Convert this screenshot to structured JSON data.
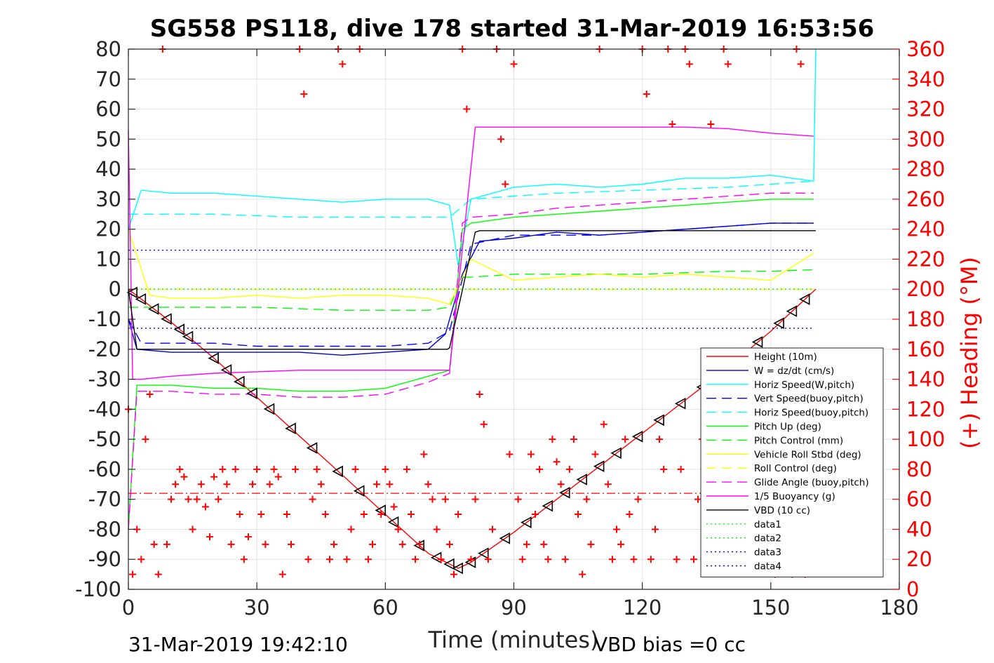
{
  "chart_data": {
    "type": "line",
    "title": "SG558 PS118, dive 178 started 31-Mar-2019 16:53:56",
    "xlabel": "Time (minutes)",
    "ylabel": "",
    "ylabel_right": "(+) Heading (°M)",
    "xlim": [
      0,
      180
    ],
    "ylim": [
      -100,
      80
    ],
    "ylim_right": [
      0,
      360
    ],
    "x_ticks": [
      "0",
      "30",
      "60",
      "90",
      "120",
      "150",
      "180"
    ],
    "y_ticks": [
      "80",
      "70",
      "60",
      "50",
      "40",
      "30",
      "20",
      "10",
      "0",
      "-10",
      "-20",
      "-30",
      "-40",
      "-50",
      "-60",
      "-70",
      "-80",
      "-90",
      "-100"
    ],
    "y_right_ticks": [
      "360",
      "340",
      "320",
      "300",
      "280",
      "260",
      "240",
      "220",
      "200",
      "180",
      "160",
      "140",
      "120",
      "100",
      "80",
      "60",
      "40",
      "20",
      "0"
    ],
    "grid": true,
    "legend_position": "bottom-right",
    "footer_left": "31-Mar-2019 19:42:10",
    "footer_right": "VBD bias =0 cc",
    "series": [
      {
        "name": "Height (10m)",
        "color": "#ff0000",
        "style": "solid",
        "x": [
          0,
          10,
          20,
          30,
          40,
          50,
          60,
          70,
          77,
          80,
          90,
          100,
          110,
          120,
          130,
          140,
          150,
          160.5
        ],
        "values": [
          0,
          -11,
          -23,
          -36,
          -49,
          -62,
          -75,
          -88,
          -93,
          -91,
          -81,
          -70,
          -59,
          -48,
          -37,
          -26,
          -14,
          0
        ]
      },
      {
        "name": "W = dz/dt (cm/s)",
        "color": "#0000cc",
        "style": "solid",
        "x": [
          0,
          2,
          10,
          20,
          30,
          40,
          50,
          60,
          70,
          74,
          78,
          82,
          90,
          100,
          110,
          120,
          130,
          140,
          150,
          160
        ],
        "values": [
          -10,
          -20,
          -21,
          -21,
          -21,
          -21,
          -22,
          -21,
          -20,
          -15,
          5,
          16,
          17,
          19,
          18,
          19,
          20,
          21,
          22,
          22
        ]
      },
      {
        "name": "Horiz Speed(W,pitch)",
        "color": "#00ffff",
        "style": "solid",
        "x": [
          0,
          3,
          10,
          20,
          30,
          40,
          50,
          60,
          70,
          75,
          77,
          80,
          90,
          100,
          110,
          120,
          130,
          140,
          150,
          160,
          160.5
        ],
        "values": [
          20,
          33,
          32,
          32,
          31,
          30,
          29,
          30,
          30,
          28,
          8,
          30,
          34,
          35,
          34,
          35,
          37,
          37,
          38,
          36,
          80
        ]
      },
      {
        "name": "Vert Speed(buoy,pitch)",
        "color": "#0000ff",
        "style": "dashed",
        "x": [
          0,
          3,
          10,
          20,
          30,
          40,
          50,
          60,
          70,
          75,
          80,
          90,
          100,
          110,
          120,
          130,
          140,
          150,
          160
        ],
        "values": [
          -10,
          -18,
          -18,
          -18,
          -19,
          -19,
          -19,
          -19,
          -18,
          -14,
          15,
          18,
          18,
          18,
          19,
          20,
          21,
          22,
          22
        ]
      },
      {
        "name": "Horiz Speed(buoy,pitch)",
        "color": "#00ffff",
        "style": "dashed",
        "x": [
          0,
          5,
          20,
          40,
          60,
          75,
          80,
          100,
          120,
          140,
          160
        ],
        "values": [
          25,
          25,
          25,
          24,
          24,
          24,
          30,
          32,
          33,
          34,
          36
        ]
      },
      {
        "name": "Pitch Up (deg)",
        "color": "#00ff00",
        "style": "solid",
        "x": [
          0,
          2,
          10,
          20,
          30,
          40,
          50,
          60,
          70,
          75,
          78,
          80,
          90,
          100,
          110,
          120,
          130,
          140,
          150,
          160
        ],
        "values": [
          -80,
          -32,
          -32,
          -33,
          -33,
          -34,
          -34,
          -33,
          -29,
          -27,
          20,
          22,
          24,
          25,
          26,
          27,
          28,
          29,
          30,
          30
        ]
      },
      {
        "name": "Pitch Control (mm)",
        "color": "#00ff00",
        "style": "dashed",
        "x": [
          0,
          10,
          20,
          30,
          40,
          50,
          60,
          70,
          75,
          78,
          80,
          90,
          100,
          110,
          120,
          130,
          140,
          150,
          160
        ],
        "values": [
          -6,
          -6,
          -6,
          -6,
          -6.5,
          -7,
          -7,
          -7,
          -6,
          4,
          4,
          5,
          5,
          5,
          5,
          5.5,
          6,
          6,
          6.5
        ]
      },
      {
        "name": "Vehicle Roll Stbd (deg)",
        "color": "#ffff00",
        "style": "solid",
        "x": [
          0,
          5,
          10,
          20,
          30,
          40,
          50,
          60,
          70,
          75,
          80,
          90,
          100,
          110,
          120,
          130,
          140,
          150,
          160
        ],
        "values": [
          20,
          -2,
          -3,
          -3,
          -2,
          -3,
          -2,
          -2,
          -3,
          -5,
          10,
          3,
          4,
          5,
          4,
          5,
          4,
          3,
          12
        ]
      },
      {
        "name": "Roll Control (deg)",
        "color": "#ffff00",
        "style": "dashed",
        "x": [
          0,
          160
        ],
        "values": [
          0,
          0
        ]
      },
      {
        "name": "Glide Angle (buoy,pitch)",
        "color": "#ff00ff",
        "style": "dashed",
        "x": [
          0,
          2,
          10,
          20,
          30,
          40,
          50,
          60,
          70,
          75,
          78,
          80,
          90,
          100,
          110,
          120,
          130,
          140,
          150,
          160
        ],
        "values": [
          -80,
          -34,
          -34,
          -35,
          -35,
          -36,
          -36,
          -35,
          -31,
          -28,
          22,
          24,
          25,
          27,
          28,
          29,
          30,
          31,
          32,
          32
        ]
      },
      {
        "name": "1/5 Buoyancy (g)",
        "color": "#ff00ff",
        "style": "solid",
        "x": [
          0,
          1,
          3,
          10,
          20,
          30,
          40,
          50,
          60,
          70,
          75,
          81,
          90,
          100,
          110,
          120,
          130,
          140,
          150,
          160
        ],
        "values": [
          53,
          -30,
          -30,
          -29,
          -28,
          -27.5,
          -27,
          -27,
          -27,
          -27,
          -27,
          54,
          54,
          54,
          54,
          54,
          54,
          53.5,
          52,
          51
        ]
      },
      {
        "name": "VBD (10 cc)",
        "color": "#000000",
        "style": "solid",
        "x": [
          0,
          2,
          10,
          30,
          50,
          70,
          74.5,
          75,
          81,
          82,
          100,
          120,
          140,
          160.5
        ],
        "values": [
          0,
          -20,
          -20,
          -20,
          -20,
          -20,
          -20,
          -19.5,
          19,
          19.5,
          19.5,
          19.5,
          19.5,
          19.5
        ]
      },
      {
        "name": "data1",
        "color": "#00ff00",
        "style": "dotted",
        "x": [
          0,
          160
        ],
        "values": [
          0,
          0
        ]
      },
      {
        "name": "data2",
        "color": "#00ff00",
        "style": "dotted",
        "x": [
          0,
          160
        ],
        "values": [
          0,
          0
        ]
      },
      {
        "name": "data3",
        "color": "#0000ff",
        "style": "dotted",
        "x": [
          0,
          160
        ],
        "values": [
          13,
          13
        ]
      },
      {
        "name": "data4",
        "color": "#0000ff",
        "style": "dotted",
        "x": [
          0,
          160
        ],
        "values": [
          -13,
          -13
        ]
      }
    ],
    "extra_lines": [
      {
        "color": "#ff0000",
        "style": "dashdot",
        "x": [
          0,
          160
        ],
        "values": [
          -68,
          -68
        ]
      }
    ],
    "heading": {
      "color": "#ff0000",
      "marker": "+",
      "axis": "right",
      "x": [
        0,
        1,
        2,
        3,
        4,
        5,
        6,
        7,
        8,
        9,
        10,
        11,
        12,
        13,
        14,
        15,
        16,
        17,
        18,
        19,
        20,
        21,
        22,
        23,
        24,
        25,
        26,
        27,
        28,
        29,
        30,
        31,
        32,
        33,
        34,
        35,
        36,
        37,
        38,
        39,
        40,
        41,
        42,
        43,
        44,
        45,
        46,
        47,
        48,
        49,
        50,
        51,
        52,
        53,
        54,
        55,
        56,
        57,
        58,
        59,
        60,
        61,
        62,
        63,
        64,
        65,
        66,
        67,
        68,
        69,
        70,
        71,
        72,
        73,
        74,
        75,
        76,
        77,
        78,
        79,
        80,
        81,
        82,
        83,
        84,
        85,
        86,
        87,
        88,
        89,
        90,
        91,
        92,
        93,
        94,
        95,
        96,
        97,
        98,
        99,
        100,
        101,
        102,
        103,
        104,
        105,
        106,
        107,
        108,
        109,
        110,
        111,
        112,
        113,
        114,
        115,
        116,
        117,
        118,
        119,
        120,
        121,
        122,
        123,
        124,
        125,
        126,
        127,
        128,
        129,
        130,
        131,
        132,
        133,
        134,
        135,
        136,
        137,
        138,
        139,
        140,
        141,
        142,
        143,
        144,
        145,
        146,
        147,
        148,
        149,
        150,
        151,
        152,
        153,
        154,
        155,
        156,
        157,
        158,
        159,
        160
      ],
      "values": [
        120,
        10,
        40,
        20,
        100,
        130,
        30,
        10,
        360,
        30,
        60,
        70,
        80,
        75,
        60,
        40,
        60,
        70,
        55,
        35,
        75,
        60,
        80,
        70,
        30,
        80,
        50,
        20,
        35,
        70,
        80,
        50,
        30,
        70,
        80,
        75,
        10,
        50,
        30,
        80,
        360,
        330,
        20,
        60,
        80,
        70,
        50,
        20,
        30,
        360,
        350,
        20,
        40,
        80,
        360,
        50,
        20,
        30,
        70,
        50,
        80,
        70,
        55,
        40,
        30,
        80,
        50,
        20,
        30,
        90,
        70,
        60,
        40,
        20,
        60,
        30,
        10,
        50,
        360,
        320,
        20,
        60,
        130,
        110,
        20,
        40,
        360,
        300,
        270,
        90,
        350,
        60,
        20,
        30,
        90,
        50,
        80,
        30,
        20,
        100,
        85,
        70,
        20,
        80,
        100,
        50,
        10,
        60,
        30,
        90,
        360,
        110,
        70,
        20,
        40,
        30,
        100,
        50,
        20,
        60,
        360,
        330,
        20,
        40,
        100,
        80,
        360,
        310,
        20,
        80,
        360,
        350,
        20,
        60,
        100,
        80,
        310,
        20,
        50,
        360,
        350,
        20,
        40,
        90,
        70,
        50,
        20,
        40,
        100,
        80,
        30,
        10,
        80,
        30,
        20,
        10,
        360,
        350,
        10,
        30,
        90
      ]
    },
    "vbd_markers": {
      "color": "#000000",
      "marker": "triangle-left",
      "x": [
        1,
        3,
        6,
        9,
        12,
        14,
        20,
        23,
        26,
        29,
        33,
        38,
        43,
        49,
        54,
        59,
        62,
        68,
        72,
        75,
        77,
        80,
        83,
        88,
        93,
        98,
        102,
        106,
        110,
        114,
        119,
        124,
        129,
        134,
        139,
        143,
        147,
        152,
        155,
        158
      ]
    }
  }
}
